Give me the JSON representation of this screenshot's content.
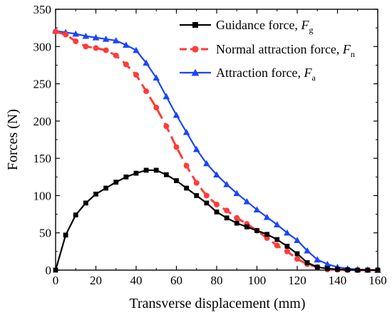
{
  "chart_data": {
    "type": "line",
    "xlabel": "Transverse displacement (mm)",
    "ylabel": "Forces (N)",
    "xlim": [
      0,
      160
    ],
    "ylim": [
      0,
      350
    ],
    "xticks": [
      "0",
      "20",
      "40",
      "60",
      "80",
      "100",
      "120",
      "140",
      "160"
    ],
    "yticks": [
      "0",
      "50",
      "100",
      "150",
      "200",
      "250",
      "300",
      "350"
    ],
    "grid": false,
    "legend_placement": "top-right",
    "series": [
      {
        "name": "Guidance force, ",
        "symbol": "F",
        "subscript": "g",
        "color": "#000000",
        "marker": "square",
        "dash": "solid",
        "x": [
          0,
          5,
          10,
          15,
          20,
          25,
          30,
          35,
          40,
          45,
          50,
          55,
          60,
          65,
          70,
          75,
          80,
          85,
          90,
          95,
          100,
          105,
          110,
          115,
          120,
          125,
          130,
          135,
          140,
          145,
          150,
          155,
          160
        ],
        "y": [
          0,
          47,
          74,
          90,
          102,
          110,
          118,
          125,
          130,
          134,
          134,
          128,
          120,
          110,
          100,
          90,
          78,
          70,
          63,
          58,
          53,
          48,
          41,
          32,
          22,
          10,
          4,
          2,
          1,
          0.5,
          0,
          0,
          0
        ]
      },
      {
        "name": "Normal attraction force, ",
        "symbol": "F",
        "subscript": "n",
        "color": "#ff3b3b",
        "marker": "circle",
        "dash": "dashed",
        "x": [
          0,
          5,
          10,
          15,
          20,
          25,
          30,
          35,
          40,
          45,
          50,
          55,
          60,
          65,
          70,
          75,
          80,
          85,
          90,
          95,
          100,
          105,
          110,
          115,
          120,
          125,
          130,
          135,
          140,
          145,
          150,
          155,
          160
        ],
        "y": [
          320,
          316,
          307,
          300,
          298,
          295,
          288,
          276,
          262,
          240,
          218,
          193,
          165,
          140,
          117,
          100,
          88,
          80,
          70,
          62,
          53,
          43,
          33,
          25,
          15,
          8,
          4,
          1,
          0.5,
          0,
          0,
          0,
          0
        ]
      },
      {
        "name": "Attraction force, ",
        "symbol": "F",
        "subscript": "a",
        "color": "#1a44ff",
        "marker": "triangle",
        "dash": "solid",
        "x": [
          0,
          5,
          10,
          15,
          20,
          25,
          30,
          35,
          40,
          45,
          50,
          55,
          60,
          65,
          70,
          75,
          80,
          85,
          90,
          95,
          100,
          105,
          110,
          115,
          120,
          125,
          130,
          135,
          140,
          145,
          150,
          155,
          160
        ],
        "y": [
          321,
          319,
          317,
          314,
          312,
          310,
          308,
          302,
          295,
          278,
          258,
          233,
          208,
          185,
          162,
          143,
          128,
          115,
          103,
          92,
          81,
          71,
          61,
          50,
          40,
          26,
          14,
          8,
          4,
          2,
          1,
          0.5,
          0
        ]
      }
    ]
  }
}
